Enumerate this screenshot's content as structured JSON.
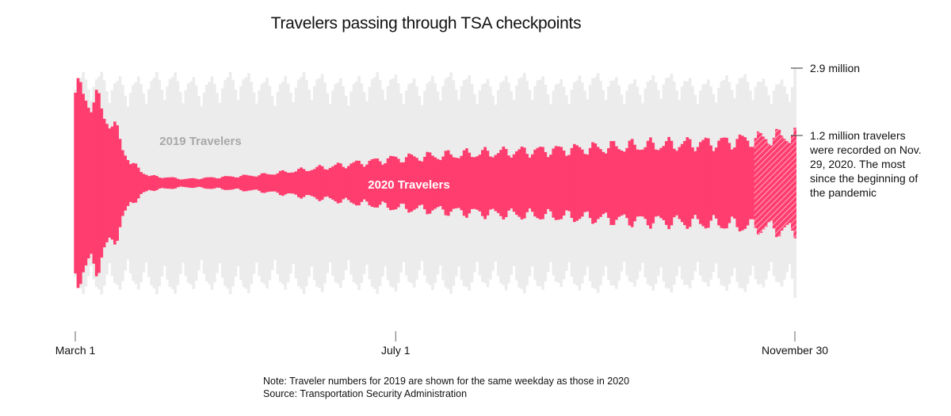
{
  "chart_data": {
    "type": "area",
    "title": "Travelers passing through TSA checkpoints",
    "x_ticks": [
      "March 1",
      "July 1",
      "November 30"
    ],
    "x_range": [
      "2020-03-01",
      "2020-11-30"
    ],
    "y_unit": "travelers per day",
    "layout_style": "mirrored daily columns around a center baseline",
    "series": [
      {
        "name": "2019 Travelers",
        "color": "#ececec",
        "label_color": "#a8a8a8",
        "weekly_pattern": [
          2.35,
          2.45,
          2.5,
          2.7,
          2.6,
          2.4,
          2.1
        ],
        "peak_value": 2.9,
        "peak_date": "2020-11-30"
      },
      {
        "name": "2020 Travelers",
        "color": "#ff3d6e",
        "label_color": "#ffffff",
        "weekly_values_millions": [
          {
            "date": "2020-03-01",
            "value": 2.28
          },
          {
            "date": "2020-03-08",
            "value": 2.1
          },
          {
            "date": "2020-03-15",
            "value": 1.5
          },
          {
            "date": "2020-03-22",
            "value": 0.5
          },
          {
            "date": "2020-03-29",
            "value": 0.18
          },
          {
            "date": "2020-04-12",
            "value": 0.1
          },
          {
            "date": "2020-05-10",
            "value": 0.2
          },
          {
            "date": "2020-06-07",
            "value": 0.42
          },
          {
            "date": "2020-07-01",
            "value": 0.62
          },
          {
            "date": "2020-08-02",
            "value": 0.75
          },
          {
            "date": "2020-09-06",
            "value": 0.85
          },
          {
            "date": "2020-10-04",
            "value": 0.95
          },
          {
            "date": "2020-11-01",
            "value": 1.02
          },
          {
            "date": "2020-11-29",
            "value": 1.2
          }
        ],
        "hatched_period": [
          "2020-11-15",
          "2020-11-30"
        ]
      }
    ],
    "annotations": [
      {
        "text": "2.9 million",
        "value": 2.9
      },
      {
        "lines": [
          "1.2 million travelers",
          "were recorded on Nov.",
          "29, 2020. The most",
          "since the beginning of",
          "the pandemic"
        ],
        "value": 1.2
      }
    ]
  },
  "notes": [
    "Note: Traveler numbers for 2019 are shown for the same weekday as those in 2020",
    "Source: Transportation Security Administration"
  ]
}
